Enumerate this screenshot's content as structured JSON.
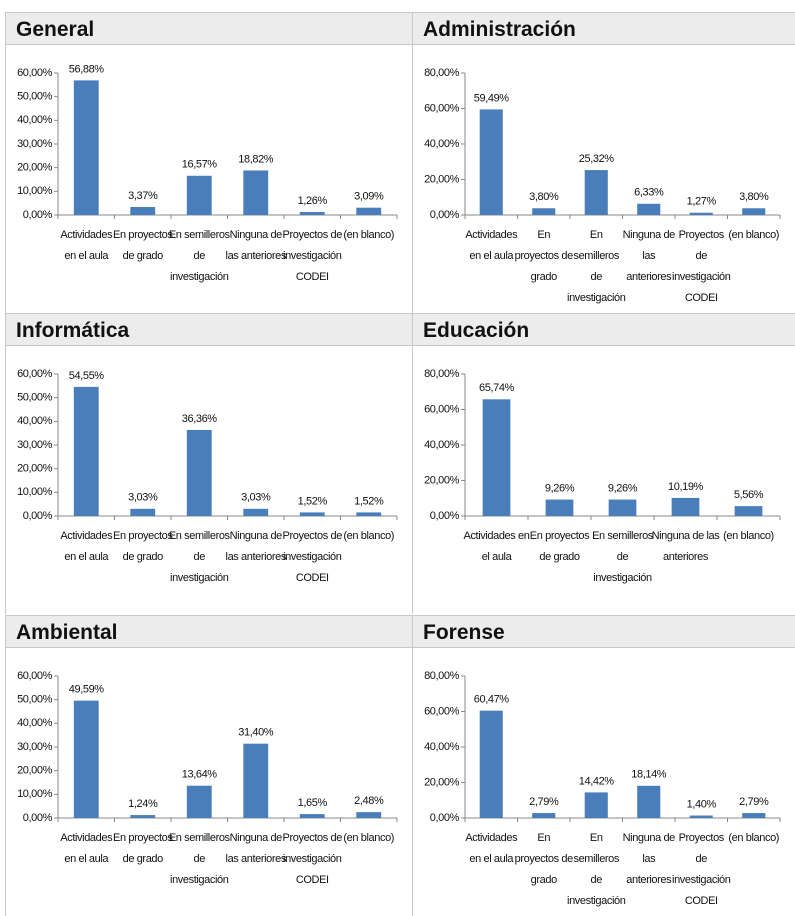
{
  "chart_data": [
    {
      "type": "bar",
      "title": "General",
      "color": "#4a7ebb",
      "categories": [
        "Actividades en el aula",
        "En proyectos de grado",
        "En semilleros de investigación",
        "Ninguna de las anteriores",
        "Proyectos de investigación CODEI",
        "(en blanco)"
      ],
      "values": [
        56.88,
        3.37,
        16.57,
        18.82,
        1.26,
        3.09
      ],
      "value_labels": [
        "56,88%",
        "3,37%",
        "16,57%",
        "18,82%",
        "1,26%",
        "3,09%"
      ],
      "ylim": [
        0,
        60
      ],
      "yticks": [
        {
          "value": 0,
          "label": "0,00%"
        },
        {
          "value": 10,
          "label": "10,00%"
        },
        {
          "value": 20,
          "label": "20,00%"
        },
        {
          "value": 30,
          "label": "30,00%"
        },
        {
          "value": 40,
          "label": "40,00%"
        },
        {
          "value": 50,
          "label": "50,00%"
        },
        {
          "value": 60,
          "label": "60,00%"
        }
      ]
    },
    {
      "type": "bar",
      "title": "Administración",
      "color": "#4a7ebb",
      "categories": [
        "Actividades en el aula",
        "En proyectos de grado",
        "En semilleros de investigación",
        "Ninguna de las anteriores",
        "Proyectos de investigación CODEI",
        "(en blanco)"
      ],
      "values": [
        59.49,
        3.8,
        25.32,
        6.33,
        1.27,
        3.8
      ],
      "value_labels": [
        "59,49%",
        "3,80%",
        "25,32%",
        "6,33%",
        "1,27%",
        "3,80%"
      ],
      "ylim": [
        0,
        80
      ],
      "yticks": [
        {
          "value": 0,
          "label": "0,00%"
        },
        {
          "value": 20,
          "label": "20,00%"
        },
        {
          "value": 40,
          "label": "40,00%"
        },
        {
          "value": 60,
          "label": "60,00%"
        },
        {
          "value": 80,
          "label": "80,00%"
        }
      ]
    },
    {
      "type": "bar",
      "title": "Informática",
      "color": "#4a7ebb",
      "categories": [
        "Actividades en el aula",
        "En proyectos de grado",
        "En semilleros de investigación",
        "Ninguna de las anteriores",
        "Proyectos de investigación CODEI",
        "(en blanco)"
      ],
      "values": [
        54.55,
        3.03,
        36.36,
        3.03,
        1.52,
        1.52
      ],
      "value_labels": [
        "54,55%",
        "3,03%",
        "36,36%",
        "3,03%",
        "1,52%",
        "1,52%"
      ],
      "ylim": [
        0,
        60
      ],
      "yticks": [
        {
          "value": 0,
          "label": "0,00%"
        },
        {
          "value": 10,
          "label": "10,00%"
        },
        {
          "value": 20,
          "label": "20,00%"
        },
        {
          "value": 30,
          "label": "30,00%"
        },
        {
          "value": 40,
          "label": "40,00%"
        },
        {
          "value": 50,
          "label": "50,00%"
        },
        {
          "value": 60,
          "label": "60,00%"
        }
      ]
    },
    {
      "type": "bar",
      "title": "Educación",
      "color": "#4a7ebb",
      "categories": [
        "Actividades en el aula",
        "En proyectos de grado",
        "En semilleros de investigación",
        "Ninguna de las anteriores",
        "(en blanco)"
      ],
      "values": [
        65.74,
        9.26,
        9.26,
        10.19,
        5.56
      ],
      "value_labels": [
        "65,74%",
        "9,26%",
        "9,26%",
        "10,19%",
        "5,56%"
      ],
      "ylim": [
        0,
        80
      ],
      "yticks": [
        {
          "value": 0,
          "label": "0,00%"
        },
        {
          "value": 20,
          "label": "20,00%"
        },
        {
          "value": 40,
          "label": "40,00%"
        },
        {
          "value": 60,
          "label": "60,00%"
        },
        {
          "value": 80,
          "label": "80,00%"
        }
      ]
    },
    {
      "type": "bar",
      "title": "Ambiental",
      "color": "#4a7ebb",
      "categories": [
        "Actividades en el aula",
        "En proyectos de grado",
        "En semilleros de investigación",
        "Ninguna de las anteriores",
        "Proyectos de investigación CODEI",
        "(en blanco)"
      ],
      "values": [
        49.59,
        1.24,
        13.64,
        31.4,
        1.65,
        2.48
      ],
      "value_labels": [
        "49,59%",
        "1,24%",
        "13,64%",
        "31,40%",
        "1,65%",
        "2,48%"
      ],
      "ylim": [
        0,
        60
      ],
      "yticks": [
        {
          "value": 0,
          "label": "0,00%"
        },
        {
          "value": 10,
          "label": "10,00%"
        },
        {
          "value": 20,
          "label": "20,00%"
        },
        {
          "value": 30,
          "label": "30,00%"
        },
        {
          "value": 40,
          "label": "40,00%"
        },
        {
          "value": 50,
          "label": "50,00%"
        },
        {
          "value": 60,
          "label": "60,00%"
        }
      ]
    },
    {
      "type": "bar",
      "title": "Forense",
      "color": "#4a7ebb",
      "categories": [
        "Actividades en el aula",
        "En proyectos de grado",
        "En semilleros de investigación",
        "Ninguna de las anteriores",
        "Proyectos de investigación CODEI",
        "(en blanco)"
      ],
      "values": [
        60.47,
        2.79,
        14.42,
        18.14,
        1.4,
        2.79
      ],
      "value_labels": [
        "60,47%",
        "2,79%",
        "14,42%",
        "18,14%",
        "1,40%",
        "2,79%"
      ],
      "ylim": [
        0,
        80
      ],
      "yticks": [
        {
          "value": 0,
          "label": "0,00%"
        },
        {
          "value": 20,
          "label": "20,00%"
        },
        {
          "value": 40,
          "label": "40,00%"
        },
        {
          "value": 60,
          "label": "60,00%"
        },
        {
          "value": 80,
          "label": "80,00%"
        }
      ]
    }
  ]
}
